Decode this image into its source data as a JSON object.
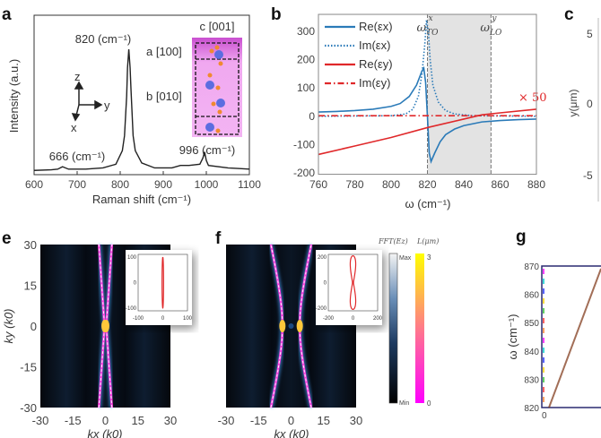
{
  "panel_labels": {
    "a": "a",
    "b": "b",
    "c": "c",
    "e": "e",
    "f": "f",
    "g": "g"
  },
  "chart_data": [
    {
      "panel": "a",
      "type": "line",
      "xlabel": "Raman shift (cm⁻¹)",
      "ylabel": "Intensity (a.u.)",
      "xlim": [
        600,
        1100
      ],
      "xticks": [
        600,
        700,
        800,
        900,
        1000,
        1100
      ],
      "x": [
        600,
        640,
        655,
        666,
        680,
        720,
        760,
        790,
        805,
        810,
        815,
        817,
        820,
        823,
        825,
        830,
        835,
        850,
        880,
        920,
        940,
        960,
        985,
        992,
        996,
        1000,
        1005,
        1050,
        1100
      ],
      "y": [
        0.02,
        0.025,
        0.03,
        0.05,
        0.03,
        0.03,
        0.04,
        0.07,
        0.18,
        0.3,
        0.62,
        0.85,
        1.0,
        0.85,
        0.68,
        0.3,
        0.18,
        0.08,
        0.04,
        0.04,
        0.06,
        0.06,
        0.07,
        0.12,
        0.17,
        0.1,
        0.06,
        0.04,
        0.03
      ],
      "annotations": [
        "820 (cm⁻¹)",
        "666 (cm⁻¹)",
        "996 (cm⁻¹)"
      ],
      "axes_labels": {
        "z": "z",
        "y": "y",
        "x": "x"
      },
      "inset_labels": {
        "c": "c [001]",
        "a": "a [100]",
        "b": "b [010]"
      }
    },
    {
      "panel": "b",
      "type": "line",
      "xlabel": "ω (cm⁻¹)",
      "xlim": [
        760,
        880
      ],
      "ylim": [
        -205,
        360
      ],
      "xticks": [
        760,
        780,
        800,
        820,
        840,
        860,
        880
      ],
      "yticks": [
        -200,
        -100,
        0,
        100,
        200,
        300
      ],
      "shaded_band": [
        820,
        855
      ],
      "vlines": [
        {
          "x": 820,
          "label": "ω",
          "sub": "TO",
          "sup": "x"
        },
        {
          "x": 855,
          "label": "ω",
          "sub": "LO",
          "sup": "y"
        }
      ],
      "annotation": "× 50",
      "series": [
        {
          "name": "Re(εx)",
          "color": "#2a7ab8",
          "style": "solid",
          "x": [
            760,
            770,
            780,
            790,
            800,
            805,
            810,
            814,
            817,
            818,
            819,
            820,
            821,
            822,
            824,
            827,
            830,
            835,
            840,
            850,
            860,
            870,
            880
          ],
          "y": [
            15,
            17,
            20,
            25,
            35,
            45,
            70,
            110,
            160,
            170,
            120,
            0,
            -130,
            -160,
            -130,
            -90,
            -65,
            -45,
            -33,
            -20,
            -15,
            -12,
            -10
          ]
        },
        {
          "name": "Im(εx)",
          "color": "#2a7ab8",
          "style": "dotted",
          "x": [
            760,
            800,
            808,
            812,
            815,
            817,
            818.5,
            819.5,
            820.5,
            821.5,
            823,
            826,
            830,
            835,
            845,
            880
          ],
          "y": [
            0,
            2,
            8,
            25,
            70,
            150,
            250,
            340,
            300,
            200,
            110,
            50,
            20,
            8,
            2,
            0
          ]
        },
        {
          "name": "Re(εy)",
          "color": "#e0282a",
          "style": "solid",
          "x": [
            760,
            780,
            800,
            820,
            840,
            850,
            860,
            880
          ],
          "y": [
            -135,
            -105,
            -75,
            -40,
            -10,
            5,
            12,
            25
          ]
        },
        {
          "name": "Im(εy)",
          "color": "#e0282a",
          "style": "dashdot",
          "x": [
            760,
            880
          ],
          "y": [
            2,
            2
          ]
        }
      ]
    },
    {
      "panel": "c",
      "ylabel": "y(μm)",
      "yticks": [
        5,
        0,
        -5
      ]
    },
    {
      "panel": "e",
      "type": "heatmap",
      "xlabel": "kx (k0)",
      "ylabel": "ky (k0)",
      "xlim": [
        -30,
        30
      ],
      "ylim": [
        -30,
        30
      ],
      "xticks": [
        -30,
        -15,
        0,
        15,
        30
      ],
      "yticks": [
        30,
        15,
        0,
        -15,
        -30
      ],
      "inset": {
        "xticks": [
          -100,
          0,
          100
        ],
        "yticks": [
          100,
          0,
          -100
        ]
      }
    },
    {
      "panel": "f",
      "type": "heatmap",
      "xlabel": "kx (k0)",
      "xlim": [
        -30,
        30
      ],
      "ylim": [
        -30,
        30
      ],
      "xticks": [
        -30,
        -15,
        0,
        15,
        30
      ],
      "inset": {
        "xticks": [
          -200,
          0,
          200
        ],
        "yticks": [
          200,
          0,
          -200
        ]
      },
      "colorbars": [
        {
          "title": "FFT(Ez)",
          "max": "Max",
          "min": "Min"
        },
        {
          "title": "L(μm)",
          "max": "3",
          "min": "0"
        }
      ]
    },
    {
      "panel": "g",
      "ylabel": "ω (cm⁻¹)",
      "yticks": [
        870,
        860,
        850,
        840,
        830,
        820
      ],
      "xticks": [
        0
      ]
    }
  ]
}
